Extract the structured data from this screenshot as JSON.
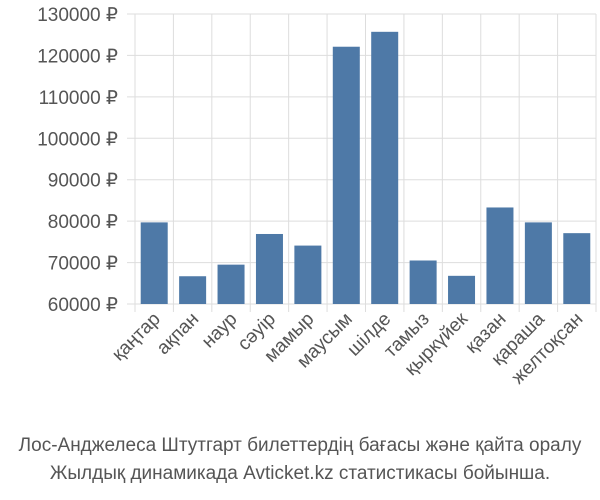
{
  "chart_data": {
    "type": "bar",
    "categories": [
      "қаңтар",
      "ақпан",
      "наур",
      "сәуір",
      "мамыр",
      "маусым",
      "шілде",
      "тамыз",
      "қыркүйек",
      "қазан",
      "қараша",
      "желтоқсан"
    ],
    "values": [
      79700,
      66700,
      69500,
      76900,
      74100,
      122100,
      125700,
      70500,
      66800,
      83300,
      79700,
      77100
    ],
    "ylim": [
      60000,
      130000
    ],
    "ytick_step": 10000,
    "yticks": [
      "60000 ₽",
      "70000 ₽",
      "80000 ₽",
      "90000 ₽",
      "100000 ₽",
      "110000 ₽",
      "120000 ₽",
      "130000 ₽"
    ],
    "bar_color": "#4e79a7",
    "grid": true
  },
  "caption": {
    "line1": "Лос-Анджелеса Штутгарт билеттердің бағасы және қайта оралу",
    "line2": "Жылдық динамикада Avticket.kz статистикасы бойынша."
  }
}
